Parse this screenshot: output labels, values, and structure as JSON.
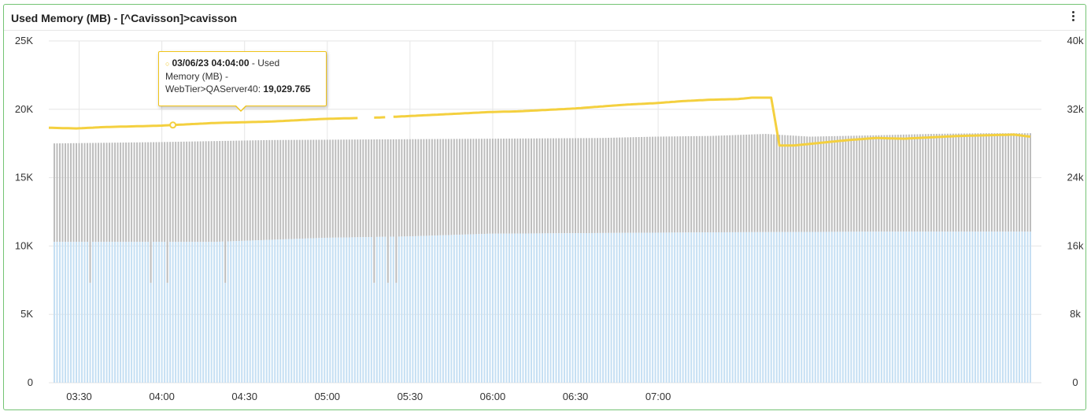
{
  "panel": {
    "title": "Used Memory (MB) - [^Cavisson]>cavisson",
    "menu_icon": "vertical-ellipsis-icon"
  },
  "tooltip": {
    "timestamp": "03/06/23 04:04:00",
    "series_text_1": " - Used",
    "series_text_2": "Memory (MB) -",
    "series_text_3": "WebTier>QAServer40: ",
    "value": "19,029.765",
    "dot_color": "#f0c419"
  },
  "chart_data": {
    "type": "bar",
    "title": "Used Memory (MB) - [^Cavisson]>cavisson",
    "x_ticks": [
      "03:30",
      "04:00",
      "04:30",
      "05:00",
      "05:30",
      "06:00",
      "06:30",
      "07:00"
    ],
    "x_range": [
      "03:19",
      "07:19"
    ],
    "y_left_ticks": [
      "0",
      "5K",
      "10K",
      "15K",
      "20K",
      "25K"
    ],
    "y_left_range": [
      0,
      25000
    ],
    "y_right_ticks": [
      "0",
      "8k",
      "16k",
      "24k",
      "32k",
      "40k"
    ],
    "y_right_range": [
      0,
      40000
    ],
    "grid": true,
    "series": [
      {
        "kind": "stacked-bar-top",
        "color": "#bdbdbd",
        "total_values": [
          [
            0,
            17500
          ],
          [
            40,
            17600
          ],
          [
            80,
            17750
          ],
          [
            120,
            17800
          ],
          [
            160,
            17850
          ],
          [
            200,
            17900
          ],
          [
            220,
            18000
          ],
          [
            240,
            18050
          ],
          [
            260,
            18200
          ],
          [
            276,
            18000
          ],
          [
            300,
            18100
          ],
          [
            320,
            18200
          ],
          [
            340,
            18250
          ],
          [
            360,
            18250
          ]
        ]
      },
      {
        "kind": "stacked-bar-base",
        "color": "#c5dff3",
        "values": [
          [
            0,
            10300
          ],
          [
            60,
            10300
          ],
          [
            100,
            10600
          ],
          [
            130,
            10700
          ],
          [
            160,
            10900
          ],
          [
            200,
            10950
          ],
          [
            240,
            11000
          ],
          [
            300,
            11050
          ],
          [
            360,
            11050
          ]
        ],
        "dips": [
          {
            "t": 15,
            "value": 7300
          },
          {
            "t": 37,
            "value": 7300
          },
          {
            "t": 43,
            "value": 7300
          },
          {
            "t": 64,
            "value": 7300
          },
          {
            "t": 118,
            "value": 7300
          },
          {
            "t": 123,
            "value": 7300
          },
          {
            "t": 126,
            "value": 7300
          }
        ]
      },
      {
        "kind": "line",
        "axis": "left",
        "color": "#f4d03f",
        "values": [
          [
            0,
            18650
          ],
          [
            10,
            18600
          ],
          [
            20,
            18700
          ],
          [
            30,
            18750
          ],
          [
            40,
            18800
          ],
          [
            50,
            18900
          ],
          [
            60,
            19000
          ],
          [
            70,
            19050
          ],
          [
            80,
            19100
          ],
          [
            90,
            19200
          ],
          [
            100,
            19300
          ],
          [
            110,
            19350
          ],
          [
            120,
            19400
          ],
          [
            130,
            19500
          ],
          [
            140,
            19600
          ],
          [
            150,
            19700
          ],
          [
            160,
            19800
          ],
          [
            170,
            19850
          ],
          [
            180,
            19950
          ],
          [
            190,
            20050
          ],
          [
            200,
            20200
          ],
          [
            210,
            20350
          ],
          [
            220,
            20450
          ],
          [
            230,
            20600
          ],
          [
            240,
            20700
          ],
          [
            250,
            20750
          ],
          [
            255,
            20850
          ],
          [
            262,
            20850
          ],
          [
            265,
            17350
          ],
          [
            270,
            17350
          ],
          [
            280,
            17550
          ],
          [
            290,
            17750
          ],
          [
            300,
            17900
          ],
          [
            310,
            17850
          ],
          [
            320,
            17950
          ],
          [
            330,
            18050
          ],
          [
            340,
            18100
          ],
          [
            350,
            18150
          ],
          [
            356,
            18000
          ]
        ],
        "gaps": [
          [
            112,
            118
          ],
          [
            122,
            125
          ],
          [
            263,
            264
          ]
        ]
      }
    ]
  }
}
